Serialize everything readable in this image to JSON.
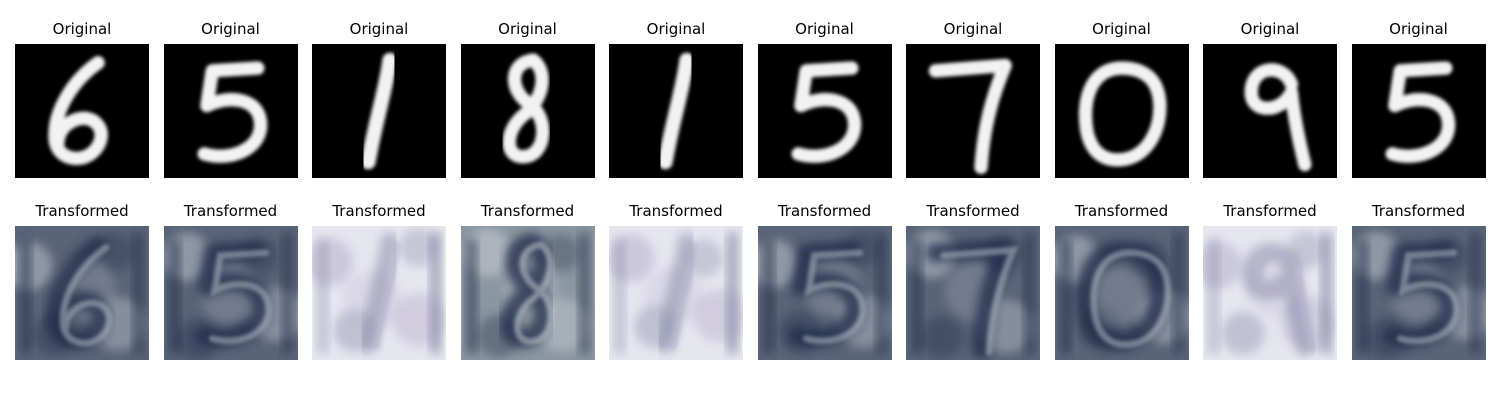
{
  "rows": [
    {
      "title": "Original",
      "panels": [
        {
          "digit": "6",
          "kind": "mnist"
        },
        {
          "digit": "5",
          "kind": "mnist"
        },
        {
          "digit": "1",
          "kind": "mnist"
        },
        {
          "digit": "8",
          "kind": "mnist"
        },
        {
          "digit": "1",
          "kind": "mnist"
        },
        {
          "digit": "5",
          "kind": "mnist"
        },
        {
          "digit": "7",
          "kind": "mnist"
        },
        {
          "digit": "0",
          "kind": "mnist"
        },
        {
          "digit": "9",
          "kind": "mnist"
        },
        {
          "digit": "5",
          "kind": "mnist"
        }
      ]
    },
    {
      "title": "Transformed",
      "panels": [
        {
          "digit": "6",
          "kind": "svhn",
          "palette": "dark"
        },
        {
          "digit": "5",
          "kind": "svhn",
          "palette": "dark"
        },
        {
          "digit": "1",
          "kind": "svhn",
          "palette": "light"
        },
        {
          "digit": "8",
          "kind": "svhn",
          "palette": "mixed"
        },
        {
          "digit": "1",
          "kind": "svhn",
          "palette": "light"
        },
        {
          "digit": "5",
          "kind": "svhn",
          "palette": "dark"
        },
        {
          "digit": "7",
          "kind": "svhn",
          "palette": "dark"
        },
        {
          "digit": "0",
          "kind": "svhn",
          "palette": "dark"
        },
        {
          "digit": "9",
          "kind": "svhn",
          "palette": "light"
        },
        {
          "digit": "5",
          "kind": "svhn",
          "palette": "dark"
        }
      ]
    }
  ],
  "colors": {
    "mnist_bg": "#000000",
    "mnist_fg": "#f2f2f2",
    "svhn_dark_bg": "#5a6478",
    "svhn_dark_stroke": "#1f2a4a",
    "svhn_light_bg": "#e6e6ee",
    "svhn_light_stroke": "#7a7ea0",
    "svhn_mixed_bg": "#8a96a0"
  }
}
